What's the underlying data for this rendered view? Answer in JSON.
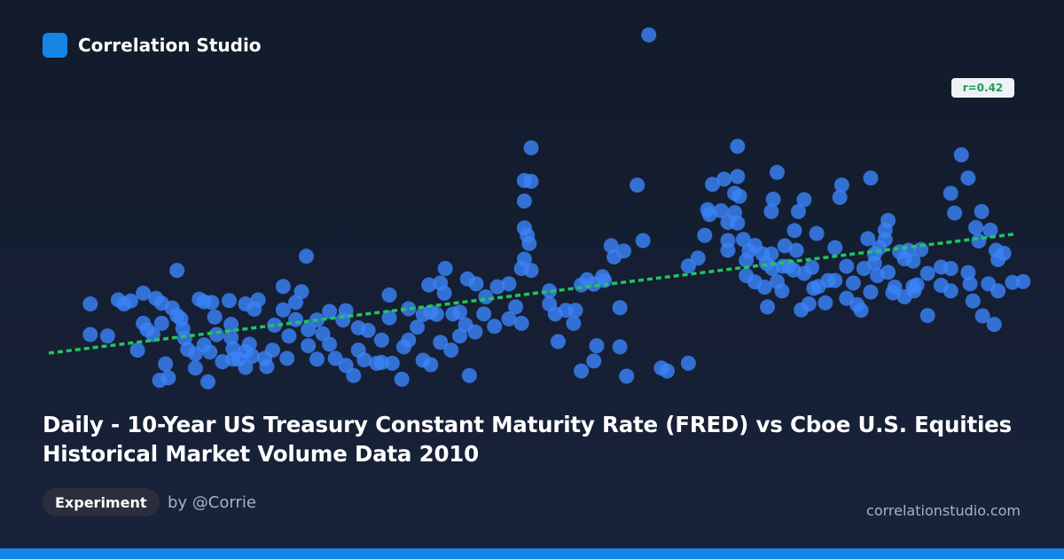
{
  "header": {
    "brand": "Correlation Studio"
  },
  "badge": {
    "r_label": "r=0.42"
  },
  "title": "Daily - 10-Year US Treasury Constant Maturity Rate (FRED) vs Cboe U.S. Equities Historical Market Volume Data 2010",
  "tag": "Experiment",
  "author": "by @Corrie",
  "site": "correlationstudio.com",
  "colors": {
    "point": "#3b82f6",
    "trend": "#22c55e",
    "accent": "#1585e6"
  },
  "chart_data": {
    "type": "scatter",
    "title": "",
    "xlabel": "",
    "ylabel": "",
    "xlim": [
      0,
      100
    ],
    "ylim": [
      0,
      100
    ],
    "grid": false,
    "r": 0.42,
    "trendline": {
      "x": [
        0,
        100
      ],
      "y": [
        10,
        41.9
      ]
    },
    "points": [
      [
        4.3,
        23.2
      ],
      [
        4.3,
        15.0
      ],
      [
        6.1,
        14.6
      ],
      [
        7.2,
        24.3
      ],
      [
        7.8,
        23.2
      ],
      [
        8.5,
        24.0
      ],
      [
        9.2,
        10.8
      ],
      [
        9.8,
        26.1
      ],
      [
        9.8,
        18.0
      ],
      [
        10.2,
        16.3
      ],
      [
        10.8,
        15.0
      ],
      [
        11.5,
        2.7
      ],
      [
        11.1,
        24.7
      ],
      [
        11.7,
        18.0
      ],
      [
        11.7,
        23.4
      ],
      [
        12.1,
        7.1
      ],
      [
        12.4,
        3.4
      ],
      [
        12.8,
        22.1
      ],
      [
        13.3,
        20.1
      ],
      [
        13.7,
        19.2
      ],
      [
        13.3,
        32.2
      ],
      [
        13.9,
        16.6
      ],
      [
        14.1,
        14.0
      ],
      [
        14.4,
        11.0
      ],
      [
        15.2,
        6.0
      ],
      [
        15.2,
        9.8
      ],
      [
        15.6,
        24.5
      ],
      [
        16.1,
        12.2
      ],
      [
        16.1,
        23.8
      ],
      [
        16.5,
        2.3
      ],
      [
        16.7,
        10.3
      ],
      [
        16.9,
        23.6
      ],
      [
        17.2,
        19.7
      ],
      [
        17.4,
        15.0
      ],
      [
        18.0,
        7.7
      ],
      [
        18.7,
        24.1
      ],
      [
        18.9,
        14.2
      ],
      [
        18.9,
        17.7
      ],
      [
        19.1,
        8.4
      ],
      [
        19.1,
        11.2
      ],
      [
        19.7,
        8.4
      ],
      [
        20.4,
        10.5
      ],
      [
        20.4,
        23.2
      ],
      [
        20.4,
        6.2
      ],
      [
        20.8,
        12.4
      ],
      [
        21.1,
        9.2
      ],
      [
        21.3,
        21.8
      ],
      [
        21.7,
        24.3
      ],
      [
        22.4,
        8.6
      ],
      [
        22.6,
        6.4
      ],
      [
        23.2,
        10.8
      ],
      [
        23.4,
        17.5
      ],
      [
        24.3,
        21.6
      ],
      [
        24.3,
        27.9
      ],
      [
        24.7,
        8.6
      ],
      [
        24.9,
        14.6
      ],
      [
        25.6,
        19.0
      ],
      [
        25.6,
        23.6
      ],
      [
        26.2,
        26.5
      ],
      [
        26.7,
        36.0
      ],
      [
        26.9,
        12.0
      ],
      [
        26.9,
        16.3
      ],
      [
        27.8,
        18.9
      ],
      [
        27.8,
        8.4
      ],
      [
        28.4,
        15.2
      ],
      [
        29.1,
        21.2
      ],
      [
        29.1,
        12.4
      ],
      [
        29.7,
        8.6
      ],
      [
        30.5,
        18.9
      ],
      [
        30.8,
        21.4
      ],
      [
        30.8,
        6.7
      ],
      [
        31.6,
        4.0
      ],
      [
        32.1,
        16.8
      ],
      [
        32.1,
        10.8
      ],
      [
        32.7,
        8.2
      ],
      [
        33.1,
        16.1
      ],
      [
        34.0,
        7.3
      ],
      [
        34.5,
        7.5
      ],
      [
        34.5,
        13.5
      ],
      [
        35.3,
        25.6
      ],
      [
        35.3,
        19.5
      ],
      [
        35.6,
        7.3
      ],
      [
        36.6,
        3.0
      ],
      [
        36.8,
        11.7
      ],
      [
        37.3,
        21.9
      ],
      [
        37.3,
        13.5
      ],
      [
        38.2,
        17.0
      ],
      [
        38.8,
        8.1
      ],
      [
        38.8,
        20.4
      ],
      [
        39.4,
        28.3
      ],
      [
        39.6,
        6.9
      ],
      [
        39.6,
        21.0
      ],
      [
        40.2,
        20.4
      ],
      [
        40.6,
        12.9
      ],
      [
        40.6,
        28.8
      ],
      [
        41.1,
        32.7
      ],
      [
        41.0,
        26.1
      ],
      [
        41.7,
        10.8
      ],
      [
        41.9,
        20.5
      ],
      [
        42.6,
        14.6
      ],
      [
        42.6,
        21.0
      ],
      [
        43.2,
        17.6
      ],
      [
        43.4,
        29.9
      ],
      [
        43.6,
        4.0
      ],
      [
        44.2,
        15.7
      ],
      [
        44.3,
        28.6
      ],
      [
        45.3,
        25.1
      ],
      [
        45.1,
        20.5
      ],
      [
        46.2,
        17.2
      ],
      [
        46.5,
        27.8
      ],
      [
        47.7,
        19.2
      ],
      [
        47.7,
        28.6
      ],
      [
        48.4,
        22.4
      ],
      [
        49.0,
        32.7
      ],
      [
        49.0,
        18.0
      ],
      [
        49.3,
        56.3
      ],
      [
        49.3,
        50.8
      ],
      [
        49.3,
        35.2
      ],
      [
        49.3,
        43.6
      ],
      [
        49.6,
        41.6
      ],
      [
        49.8,
        39.4
      ],
      [
        50.0,
        65.1
      ],
      [
        50.0,
        56.1
      ],
      [
        50.0,
        32.2
      ],
      [
        51.9,
        23.2
      ],
      [
        51.9,
        26.7
      ],
      [
        52.5,
        20.5
      ],
      [
        52.8,
        13.1
      ],
      [
        53.6,
        21.5
      ],
      [
        54.4,
        18.0
      ],
      [
        54.6,
        21.5
      ],
      [
        55.2,
        28.3
      ],
      [
        55.2,
        5.2
      ],
      [
        55.8,
        29.7
      ],
      [
        56.5,
        7.9
      ],
      [
        56.5,
        28.5
      ],
      [
        56.8,
        12.0
      ],
      [
        57.4,
        30.5
      ],
      [
        57.6,
        29.5
      ],
      [
        58.3,
        38.8
      ],
      [
        58.6,
        35.8
      ],
      [
        59.2,
        11.7
      ],
      [
        59.2,
        22.2
      ],
      [
        59.9,
        3.8
      ],
      [
        59.6,
        37.4
      ],
      [
        61.0,
        55.1
      ],
      [
        61.6,
        40.2
      ],
      [
        62.2,
        95.4
      ],
      [
        63.5,
        6.0
      ],
      [
        64.1,
        5.2
      ],
      [
        66.3,
        7.3
      ],
      [
        66.3,
        33.4
      ],
      [
        67.3,
        35.5
      ],
      [
        68.0,
        41.6
      ],
      [
        68.3,
        48.5
      ],
      [
        68.5,
        47.2
      ],
      [
        68.8,
        55.3
      ],
      [
        69.7,
        48.2
      ],
      [
        70.0,
        56.7
      ],
      [
        70.4,
        45.1
      ],
      [
        70.4,
        40.2
      ],
      [
        70.4,
        37.6
      ],
      [
        71.1,
        52.9
      ],
      [
        71.1,
        47.7
      ],
      [
        71.4,
        44.9
      ],
      [
        71.4,
        57.4
      ],
      [
        71.4,
        65.5
      ],
      [
        71.6,
        52.1
      ],
      [
        72.0,
        40.5
      ],
      [
        72.3,
        34.9
      ],
      [
        72.3,
        30.8
      ],
      [
        72.6,
        37.4
      ],
      [
        73.2,
        29.1
      ],
      [
        73.2,
        38.9
      ],
      [
        74.0,
        36.6
      ],
      [
        74.2,
        27.7
      ],
      [
        74.4,
        34.1
      ],
      [
        74.5,
        22.4
      ],
      [
        74.9,
        36.6
      ],
      [
        74.9,
        48.0
      ],
      [
        75.0,
        32.7
      ],
      [
        75.1,
        51.3
      ],
      [
        75.5,
        58.5
      ],
      [
        75.5,
        29.2
      ],
      [
        76.0,
        26.7
      ],
      [
        76.3,
        38.8
      ],
      [
        76.1,
        33.3
      ],
      [
        76.7,
        33.3
      ],
      [
        77.3,
        42.9
      ],
      [
        77.2,
        32.3
      ],
      [
        77.5,
        37.6
      ],
      [
        77.7,
        48.0
      ],
      [
        78.0,
        21.6
      ],
      [
        78.3,
        31.4
      ],
      [
        78.3,
        51.2
      ],
      [
        78.8,
        23.2
      ],
      [
        79.1,
        33.0
      ],
      [
        79.3,
        27.4
      ],
      [
        79.6,
        42.1
      ],
      [
        79.8,
        27.9
      ],
      [
        80.5,
        23.5
      ],
      [
        80.8,
        29.5
      ],
      [
        81.5,
        29.5
      ],
      [
        81.5,
        38.3
      ],
      [
        82.0,
        51.8
      ],
      [
        82.2,
        55.1
      ],
      [
        82.7,
        24.7
      ],
      [
        82.7,
        33.3
      ],
      [
        83.4,
        28.8
      ],
      [
        83.8,
        23.0
      ],
      [
        84.2,
        21.5
      ],
      [
        84.5,
        32.7
      ],
      [
        84.9,
        40.7
      ],
      [
        85.2,
        26.4
      ],
      [
        85.2,
        57.0
      ],
      [
        85.6,
        36.6
      ],
      [
        85.6,
        34.1
      ],
      [
        85.9,
        30.8
      ],
      [
        86.1,
        38.3
      ],
      [
        86.7,
        43.0
      ],
      [
        86.7,
        40.5
      ],
      [
        87.0,
        45.6
      ],
      [
        87.0,
        31.7
      ],
      [
        87.5,
        26.2
      ],
      [
        87.7,
        27.7
      ],
      [
        88.2,
        37.2
      ],
      [
        88.7,
        25.1
      ],
      [
        88.7,
        35.3
      ],
      [
        89.1,
        37.6
      ],
      [
        89.6,
        27.9
      ],
      [
        89.6,
        34.7
      ],
      [
        89.7,
        26.7
      ],
      [
        90.0,
        28.3
      ],
      [
        90.4,
        37.8
      ],
      [
        91.1,
        20.1
      ],
      [
        91.1,
        31.4
      ],
      [
        92.5,
        28.2
      ],
      [
        92.5,
        33.1
      ],
      [
        93.5,
        26.7
      ],
      [
        93.5,
        32.7
      ],
      [
        93.9,
        47.6
      ],
      [
        93.5,
        52.9
      ],
      [
        94.6,
        63.2
      ],
      [
        95.3,
        57.0
      ],
      [
        95.3,
        31.6
      ],
      [
        95.5,
        28.6
      ],
      [
        95.8,
        24.0
      ],
      [
        96.8,
        20.0
      ],
      [
        97.4,
        28.6
      ],
      [
        98.2,
        37.6
      ],
      [
        98.4,
        35.1
      ],
      [
        97.6,
        43.0
      ],
      [
        96.7,
        48.0
      ],
      [
        96.1,
        43.7
      ],
      [
        98.0,
        17.7
      ],
      [
        98.4,
        26.7
      ],
      [
        99.0,
        36.8
      ],
      [
        99.9,
        29.0
      ],
      [
        101.0,
        29.2
      ],
      [
        96.4,
        40.1
      ]
    ]
  }
}
